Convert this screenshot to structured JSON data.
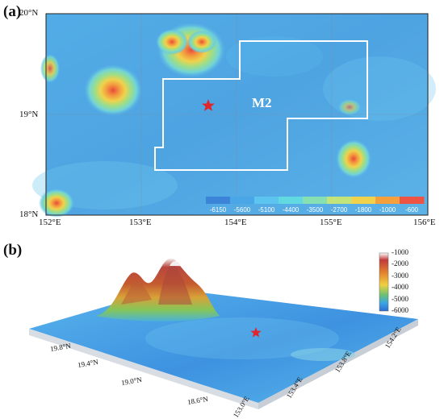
{
  "panel_a": {
    "label": "(a)",
    "region_label": "M2",
    "lat_ticks": [
      "20°N",
      "19°N",
      "18°N"
    ],
    "lon_ticks": [
      "152°E",
      "153°E",
      "154°E",
      "155°E",
      "156°E"
    ],
    "colorbar_values": [
      "-6150",
      "-5600",
      "-5100",
      "-4400",
      "-3500",
      "-2700",
      "-1800",
      "-1000",
      "-600"
    ],
    "colorbar_colors": [
      "#3c84d8",
      "#4aa6e6",
      "#5cc4ee",
      "#62d8e0",
      "#86e0b2",
      "#c2e47a",
      "#f0d24c",
      "#f4a03c",
      "#ee5444"
    ],
    "marker": "star",
    "marker_color": "#e0262a"
  },
  "panel_b": {
    "label": "(b)",
    "colorbar_values": [
      "-1000",
      "-2000",
      "-3000",
      "-4000",
      "-5000",
      "-6000"
    ],
    "lat_ticks": [
      "19.8°N",
      "19.4°N",
      "19.0°N",
      "18.6°N"
    ],
    "lon_ticks": [
      "153.0°E",
      "153.4°E",
      "153.8°E",
      "154.2°E"
    ],
    "marker": "star",
    "marker_color": "#e0262a"
  }
}
